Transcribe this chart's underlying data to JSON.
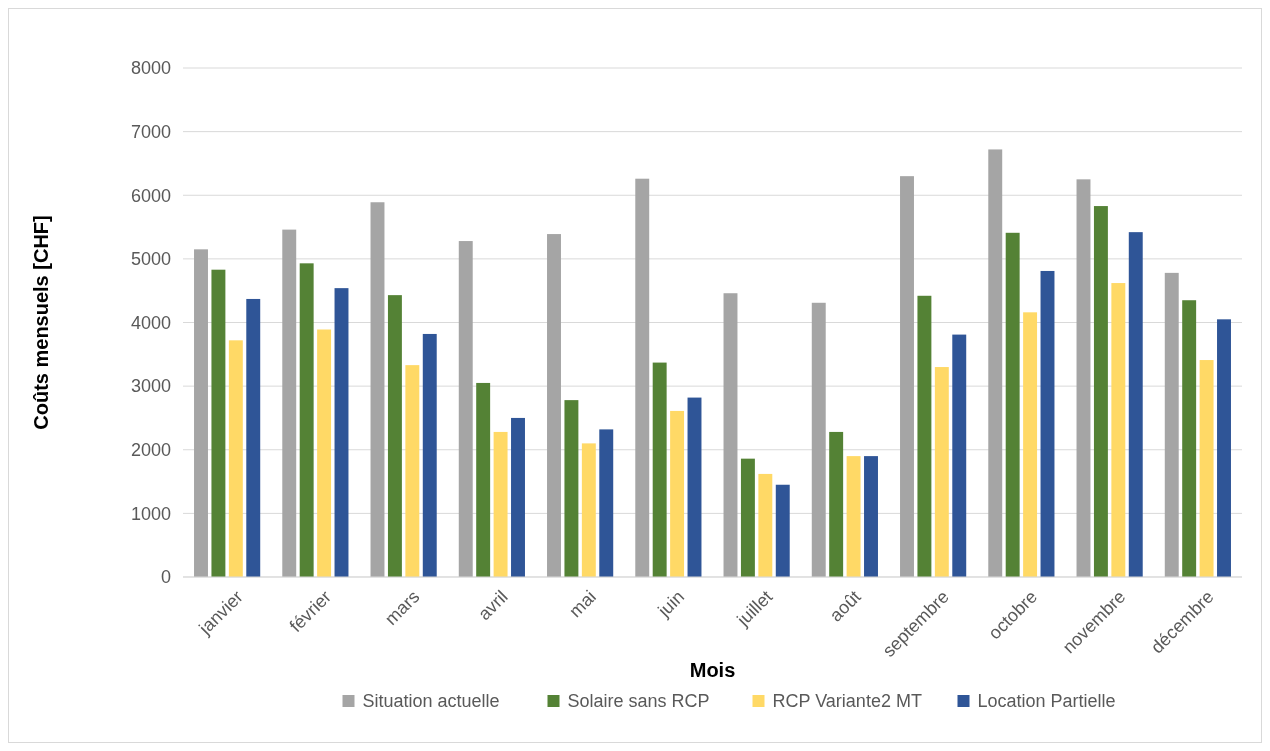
{
  "chart_data": {
    "type": "bar",
    "xlabel": "Mois",
    "ylabel": "Coûts mensuels [CHF]",
    "categories": [
      "janvier",
      "février",
      "mars",
      "avril",
      "mai",
      "juin",
      "juillet",
      "août",
      "septembre",
      "octobre",
      "novembre",
      "décembre"
    ],
    "series": [
      {
        "name": "Situation actuelle",
        "color": "#a5a5a5",
        "values": [
          5150,
          5460,
          5890,
          5280,
          5390,
          6260,
          4460,
          4310,
          6300,
          6720,
          6250,
          4780
        ]
      },
      {
        "name": "Solaire sans RCP",
        "color": "#548235",
        "values": [
          4830,
          4930,
          4430,
          3050,
          2780,
          3370,
          1860,
          2280,
          4420,
          5410,
          5830,
          4350
        ]
      },
      {
        "name": "RCP Variante2 MT",
        "color": "#ffd966",
        "values": [
          3720,
          3890,
          3330,
          2280,
          2100,
          2610,
          1620,
          1900,
          3300,
          4160,
          4620,
          3410
        ]
      },
      {
        "name": "Location Partielle",
        "color": "#2f5597",
        "values": [
          4370,
          4540,
          3820,
          2500,
          2320,
          2820,
          1450,
          1900,
          3810,
          4810,
          5420,
          4050
        ]
      }
    ],
    "ylim": [
      0,
      8000
    ],
    "yticks": [
      0,
      1000,
      2000,
      3000,
      4000,
      5000,
      6000,
      7000,
      8000
    ],
    "grid": "y",
    "legend": "bottom"
  }
}
